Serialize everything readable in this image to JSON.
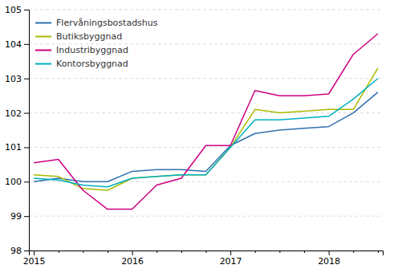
{
  "chart_data": {
    "type": "line",
    "categories": [
      "2015",
      null,
      null,
      null,
      "2016",
      null,
      null,
      null,
      "2017",
      null,
      null,
      null,
      "2018",
      null,
      null
    ],
    "series": [
      {
        "name": "Flervåningsbostadshus",
        "color": "#3070B0",
        "values": [
          100.0,
          100.1,
          100.0,
          100.0,
          100.3,
          100.35,
          100.35,
          100.3,
          101.05,
          101.4,
          101.5,
          101.55,
          101.6,
          102.0,
          102.6
        ]
      },
      {
        "name": "Butiksbyggnad",
        "color": "#AABB00",
        "values": [
          100.2,
          100.15,
          99.8,
          99.75,
          100.1,
          100.15,
          100.2,
          100.2,
          101.0,
          102.1,
          102.0,
          102.05,
          102.1,
          102.1,
          103.3
        ]
      },
      {
        "name": "Industribyggnad",
        "color": "#CC0080",
        "values": [
          100.55,
          100.65,
          99.75,
          99.2,
          99.2,
          99.9,
          100.1,
          101.05,
          101.05,
          102.65,
          102.5,
          102.5,
          102.55,
          103.7,
          104.3
        ]
      },
      {
        "name": "Kontorsbyggnad",
        "color": "#00B0C0",
        "values": [
          100.1,
          100.05,
          99.9,
          99.85,
          100.1,
          100.15,
          100.2,
          100.2,
          101.0,
          101.8,
          101.8,
          101.85,
          101.9,
          102.4,
          103.0
        ]
      }
    ],
    "ylim": [
      98,
      105
    ],
    "yticks": [
      98,
      99,
      100,
      101,
      102,
      103,
      104,
      105
    ],
    "grid": true,
    "legend": "upper left"
  }
}
